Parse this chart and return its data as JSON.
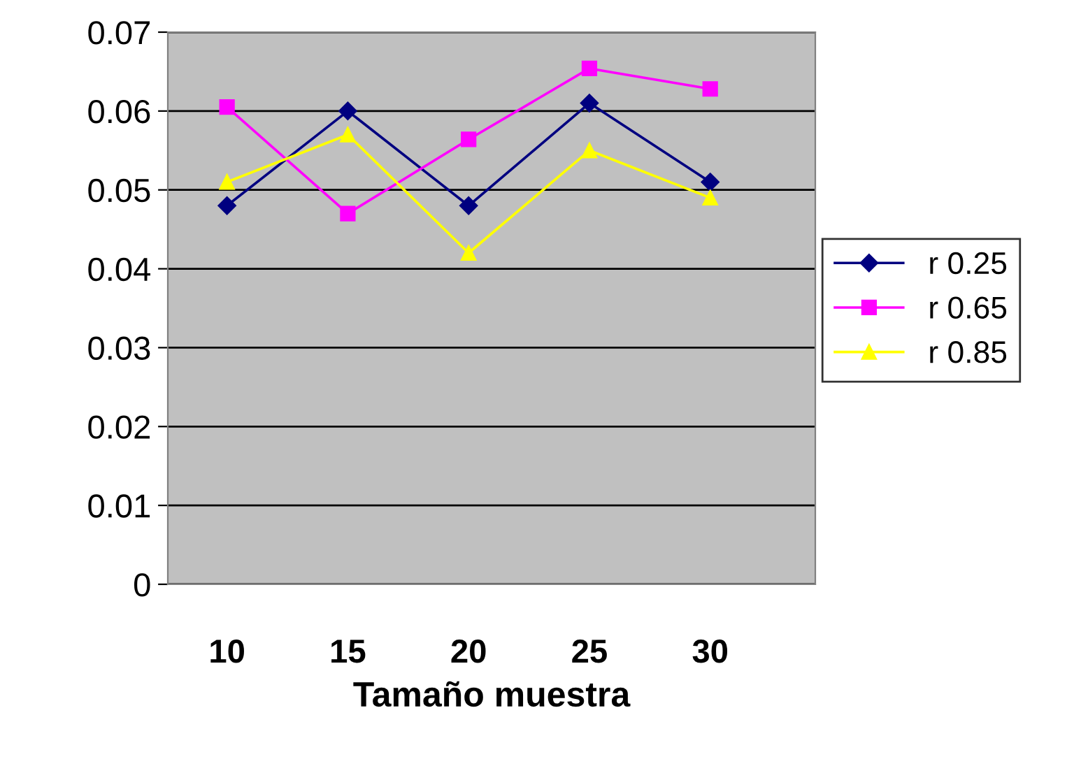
{
  "chart_data": {
    "type": "line",
    "xlabel": "Tamaño muestra",
    "categories": [
      "10",
      "15",
      "20",
      "25",
      "30"
    ],
    "series": [
      {
        "name": "r 0.25",
        "color": "#000080",
        "marker": "diamond",
        "values": [
          0.048,
          0.06,
          0.048,
          0.061,
          0.051
        ]
      },
      {
        "name": "r 0.65",
        "color": "#ff00ff",
        "marker": "square",
        "values": [
          0.0605,
          0.047,
          0.0564,
          0.0654,
          0.0628
        ]
      },
      {
        "name": "r 0.85",
        "color": "#ffff00",
        "marker": "triangle",
        "values": [
          0.051,
          0.057,
          0.042,
          0.055,
          0.049
        ]
      }
    ],
    "ylim": [
      0,
      0.07
    ],
    "yticks": [
      {
        "value": 0,
        "label": "0"
      },
      0.01,
      0.02,
      0.03,
      0.04,
      0.05,
      0.06,
      0.07
    ],
    "grid": "y",
    "legend": "right",
    "line_style": "solid"
  }
}
